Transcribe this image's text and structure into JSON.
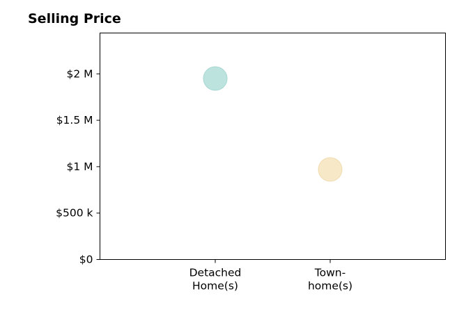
{
  "chart_data": {
    "type": "scatter",
    "title": "Selling Price",
    "xlabel": "",
    "ylabel": "",
    "categories": [
      "Detached Home(s)",
      "Town-home(s)"
    ],
    "category_tick_lines": [
      [
        "Detached",
        "Home(s)"
      ],
      [
        "Town-",
        "home(s)"
      ]
    ],
    "points": [
      {
        "category": "Detached Home(s)",
        "value": 1950000,
        "color": "#bde3df",
        "edge_color": "#a6d7d2"
      },
      {
        "category": "Town-home(s)",
        "value": 970000,
        "color": "#f7e8c8",
        "edge_color": "#f0dcb0"
      }
    ],
    "y_ticks": [
      {
        "value": 0,
        "label": "$0"
      },
      {
        "value": 500000,
        "label": "$500 k"
      },
      {
        "value": 1000000,
        "label": "$1 M"
      },
      {
        "value": 1500000,
        "label": "$1.5 M"
      },
      {
        "value": 2000000,
        "label": "$2 M"
      }
    ],
    "ylim": [
      0,
      2440000
    ],
    "grid": false,
    "legend": "none"
  }
}
